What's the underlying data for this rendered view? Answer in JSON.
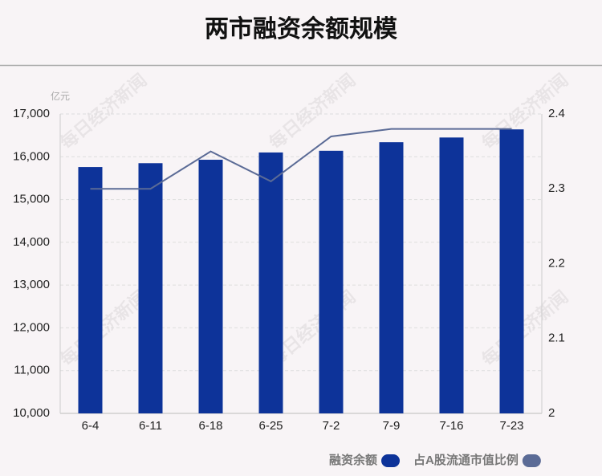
{
  "chart_data": {
    "type": "bar_line",
    "title": "两市融资余额规模",
    "unit": "亿元",
    "watermark": "每日经济新闻",
    "categories": [
      "6-4",
      "6-11",
      "6-18",
      "6-25",
      "7-2",
      "7-9",
      "7-16",
      "7-23"
    ],
    "series": [
      {
        "name": "融资余额",
        "color": "#0d3399",
        "type": "bar",
        "values": [
          15760,
          15850,
          15930,
          16100,
          16140,
          16340,
          16450,
          16640
        ]
      },
      {
        "name": "占A股流通市值比例",
        "color": "#5b6b96",
        "type": "line",
        "axis": "y2",
        "values": [
          2.3,
          2.3,
          2.35,
          2.31,
          2.37,
          2.38,
          2.38,
          2.38
        ]
      }
    ],
    "ylim": [
      10000,
      17000
    ],
    "yticks": [
      {
        "value": 10000,
        "label": "10,000"
      },
      {
        "value": 11000,
        "label": "11,000"
      },
      {
        "value": 12000,
        "label": "12,000"
      },
      {
        "value": 13000,
        "label": "13,000"
      },
      {
        "value": 14000,
        "label": "14,000"
      },
      {
        "value": 15000,
        "label": "15,000"
      },
      {
        "value": 16000,
        "label": "16,000"
      },
      {
        "value": 17000,
        "label": "17,000"
      }
    ],
    "y2lim": [
      2,
      2.4
    ],
    "y2ticks": [
      2,
      2.1,
      2.2,
      2.3,
      2.4
    ],
    "grid": true
  }
}
